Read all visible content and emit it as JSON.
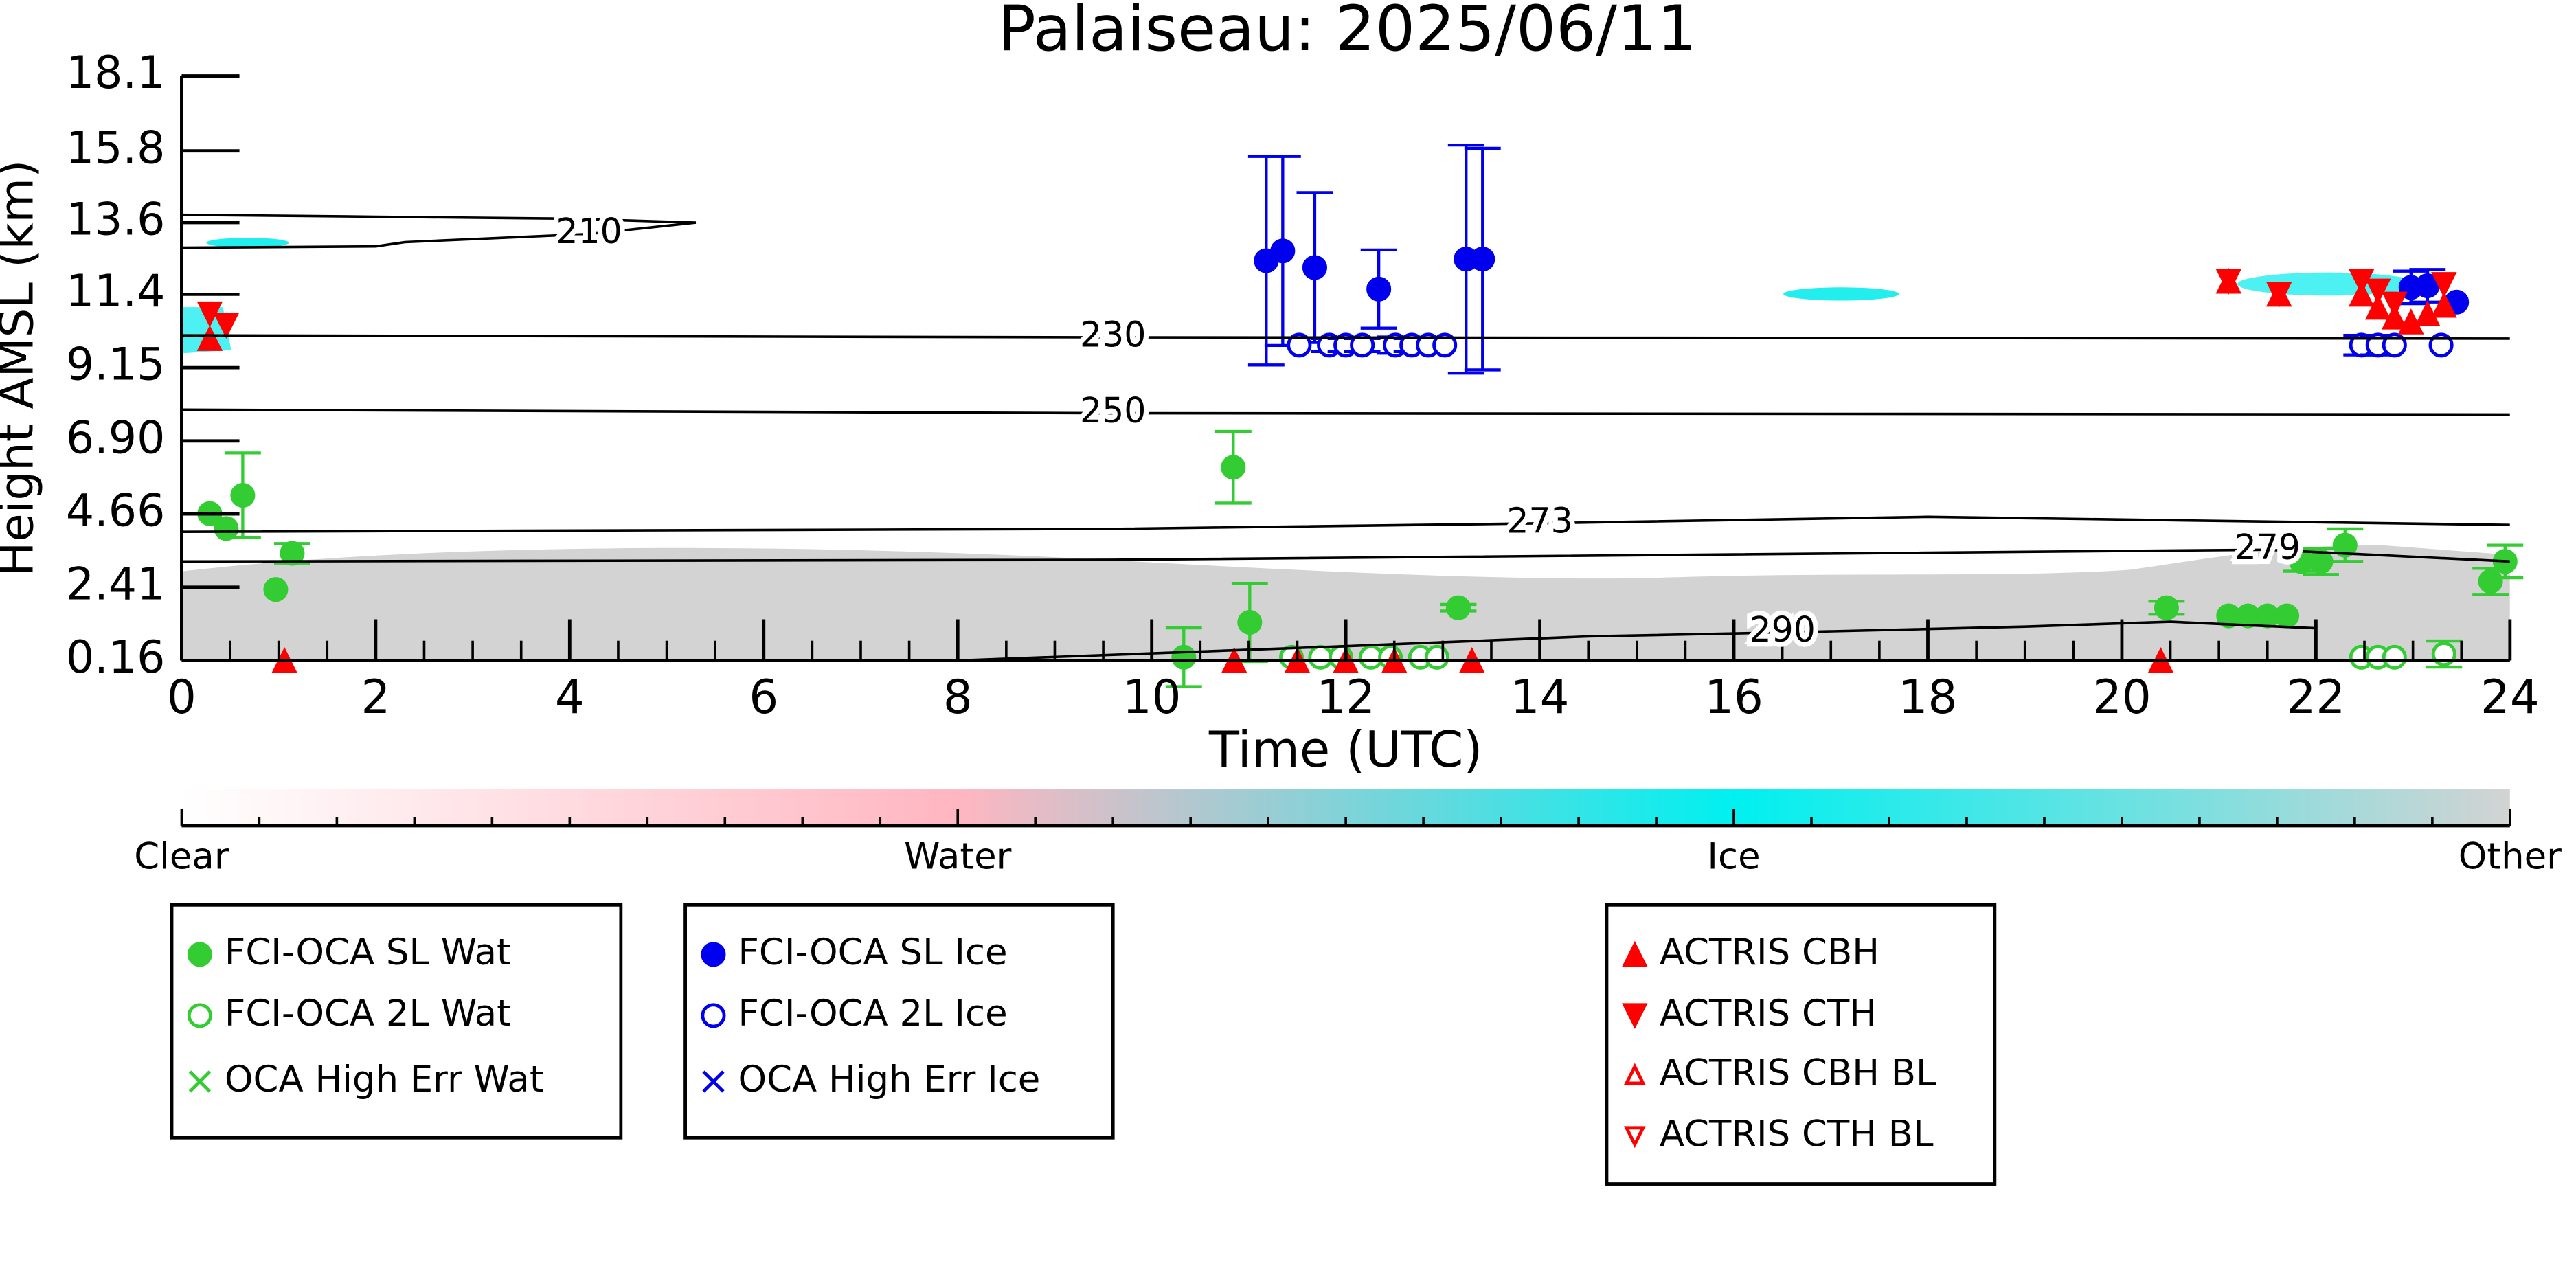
{
  "chart_data": {
    "type": "scatter",
    "title": "Palaiseau: 2025/06/11",
    "xlabel": "Time (UTC)",
    "ylabel": "Height AMSL (km)",
    "xlim": [
      0,
      24
    ],
    "xticks": [
      0,
      2,
      4,
      6,
      8,
      10,
      12,
      14,
      16,
      18,
      20,
      22,
      24
    ],
    "ylim": [
      0.16,
      18.1
    ],
    "yticks": [
      0.16,
      2.41,
      4.66,
      {
        "value": 6.9,
        "label": "6.90"
      },
      9.15,
      11.4,
      13.6,
      15.8,
      18.1
    ],
    "contours": [
      {
        "level": 210,
        "x": [
          0,
          2,
          4,
          5.3,
          4.2,
          2.3,
          2,
          0
        ],
        "y": [
          13.84,
          13.78,
          13.72,
          13.6,
          13.25,
          13.0,
          12.87,
          12.83
        ]
      },
      {
        "level": 230,
        "x": [
          0,
          9.6,
          24
        ],
        "y": [
          10.14,
          10.08,
          10.04
        ]
      },
      {
        "level": 250,
        "x": [
          0,
          9.6,
          24
        ],
        "y": [
          7.86,
          7.75,
          7.71
        ]
      },
      {
        "level": 273,
        "x": [
          0,
          9.6,
          14,
          18,
          24
        ],
        "y": [
          4.11,
          4.2,
          4.37,
          4.57,
          4.32
        ]
      },
      {
        "level": 279,
        "x": [
          0,
          9.6,
          21.5,
          24
        ],
        "y": [
          3.2,
          3.25,
          3.56,
          3.2
        ]
      },
      {
        "level": 290,
        "x": [
          8,
          12,
          14.5,
          16.5,
          19,
          20.5,
          22
        ],
        "y": [
          0.16,
          0.6,
          0.9,
          1.02,
          1.2,
          1.35,
          1.15
        ]
      }
    ],
    "series": [
      {
        "name": "FCI-OCA SL Wat",
        "color": "#33cc33",
        "marker": "o",
        "filled": true,
        "x": [
          0.29,
          0.46,
          0.63,
          0.97,
          1.14,
          10.33,
          10.84,
          11.01,
          13.16,
          20.46,
          21.1,
          21.3,
          21.5,
          21.7,
          21.85,
          22.05,
          22.3,
          23.8,
          23.95
        ],
        "values": [
          4.67,
          4.21,
          5.23,
          2.34,
          3.45,
          0.26,
          6.09,
          1.33,
          1.78,
          1.78,
          1.53,
          1.53,
          1.53,
          1.53,
          3.2,
          3.2,
          3.7,
          2.59,
          3.2
        ],
        "errors": [
          null,
          null,
          1.3,
          null,
          0.3,
          0.9,
          1.1,
          1.2,
          0.1,
          0.2,
          null,
          null,
          null,
          null,
          0.3,
          0.4,
          0.5,
          0.4,
          0.5
        ]
      },
      {
        "name": "FCI-OCA 2L Wat",
        "color": "#33cc33",
        "marker": "o",
        "filled": false,
        "x": [
          11.44,
          11.74,
          11.95,
          12.26,
          12.46,
          12.77,
          12.94,
          22.47,
          22.64,
          22.81,
          23.32
        ],
        "values": [
          0.26,
          0.26,
          0.26,
          0.26,
          0.26,
          0.26,
          0.26,
          0.26,
          0.26,
          0.26,
          0.36
        ],
        "errors": [
          null,
          null,
          null,
          null,
          null,
          null,
          null,
          null,
          null,
          null,
          0.4
        ]
      },
      {
        "name": "OCA High Err Wat",
        "color": "#33cc33",
        "marker": "x",
        "filled": true,
        "x": [],
        "values": [],
        "errors": []
      },
      {
        "name": "FCI-OCA SL Ice",
        "color": "#0000ee",
        "marker": "o",
        "filled": true,
        "x": [
          11.18,
          11.35,
          11.68,
          12.34,
          13.24,
          13.41,
          22.98,
          23.15,
          23.45
        ],
        "values": [
          12.43,
          12.73,
          12.22,
          11.56,
          12.48,
          12.48,
          11.61,
          11.66,
          11.16
        ],
        "errors": [
          3.2,
          2.9,
          2.3,
          1.2,
          3.5,
          3.4,
          0.5,
          0.5,
          null
        ]
      },
      {
        "name": "FCI-OCA 2L Ice",
        "color": "#0000ee",
        "marker": "o",
        "filled": false,
        "x": [
          11.52,
          11.83,
          12.0,
          12.17,
          12.51,
          12.68,
          12.85,
          13.02,
          22.47,
          22.64,
          22.81,
          23.29
        ],
        "values": [
          9.84,
          9.84,
          9.84,
          9.84,
          9.84,
          9.84,
          9.84,
          9.84,
          9.84,
          9.84,
          9.84,
          9.84
        ],
        "errors": [
          null,
          0.2,
          0.2,
          0.2,
          0.25,
          0.2,
          null,
          null,
          0.3,
          0.3,
          null,
          null
        ]
      },
      {
        "name": "OCA High Err Ice",
        "color": "#0000ee",
        "marker": "x",
        "filled": true,
        "x": [],
        "values": [],
        "errors": []
      },
      {
        "name": "ACTRIS CBH",
        "color": "#ff0000",
        "marker": "^",
        "filled": true,
        "x": [
          0.29,
          1.06,
          10.85,
          11.5,
          12.0,
          12.5,
          13.3,
          20.4,
          21.1,
          21.62,
          22.47,
          22.64,
          22.81,
          22.98,
          23.15,
          23.32
        ],
        "values": [
          10.04,
          0.16,
          0.16,
          0.16,
          0.16,
          0.16,
          0.16,
          0.16,
          11.8,
          11.4,
          11.4,
          11.0,
          10.7,
          10.55,
          10.8,
          11.06
        ]
      },
      {
        "name": "ACTRIS CTH",
        "color": "#ff0000",
        "marker": "v",
        "filled": true,
        "x": [
          0.29,
          0.46,
          21.1,
          21.62,
          22.47,
          22.64,
          22.81,
          23.32
        ],
        "values": [
          10.8,
          10.45,
          11.8,
          11.4,
          11.8,
          11.5,
          11.1,
          11.7
        ]
      },
      {
        "name": "ACTRIS CBH BL",
        "color": "#ff0000",
        "marker": "^",
        "filled": false,
        "x": [],
        "values": []
      },
      {
        "name": "ACTRIS CTH BL",
        "color": "#ff0000",
        "marker": "v",
        "filled": false,
        "x": [],
        "values": []
      }
    ],
    "colorbar": {
      "labels": [
        "Clear",
        "Water",
        "Ice",
        "Other"
      ],
      "colors": [
        "#ffffff",
        "#ffb6c1",
        "#00f0f0",
        "#d3d3d3"
      ]
    }
  }
}
